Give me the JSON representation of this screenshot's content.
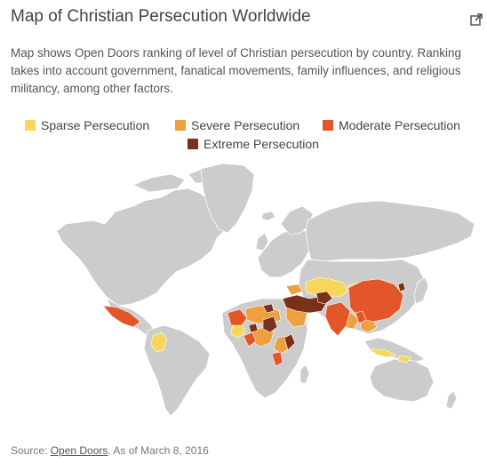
{
  "title": "Map of Christian Persecution Worldwide",
  "description_lines": [
    "Map shows Open Doors ranking of level of Christian persecution by country. Ranking",
    "takes into account government, fanatical movements, family influences, and religious",
    "militancy, among other factors."
  ],
  "legend": [
    {
      "label": "Sparse Persecution",
      "color": "#f7d75a"
    },
    {
      "label": "Severe Persecution",
      "color": "#ee9f3f"
    },
    {
      "label": "Moderate Persecution",
      "color": "#e2562a"
    },
    {
      "label": "Extreme Persecution",
      "color": "#7a3019"
    }
  ],
  "land_color": "#cccccc",
  "source": {
    "prefix": "Source: ",
    "link_text": "Open Doors",
    "suffix": ". As of March 8, 2016"
  },
  "icons": {
    "popout": "external-link-icon"
  }
}
